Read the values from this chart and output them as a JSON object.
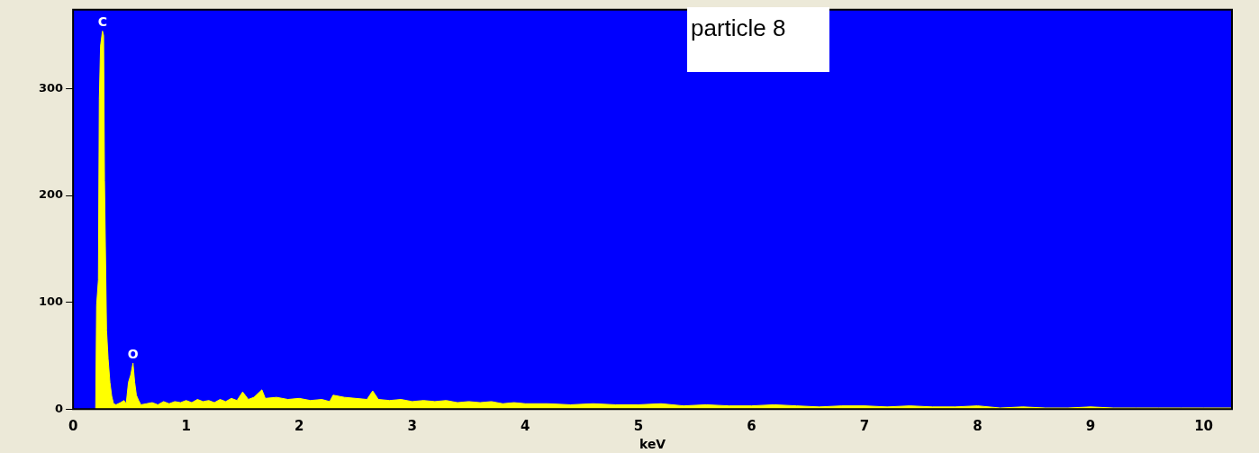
{
  "chart_data": {
    "type": "area",
    "xlabel": "keV",
    "xlim": [
      0,
      10.25
    ],
    "xticks": [
      0,
      1,
      2,
      3,
      4,
      5,
      6,
      7,
      8,
      9,
      10
    ],
    "ylim": [
      0,
      374
    ],
    "yticks": [
      0,
      100,
      200,
      300
    ],
    "grid": false,
    "legend": false,
    "annotations": [
      {
        "text": "C",
        "x": 0.26,
        "y": 354
      },
      {
        "text": "O",
        "x": 0.53,
        "y": 43
      },
      "particle 8"
    ],
    "x": [
      0.2,
      0.208,
      0.224,
      0.232,
      0.243,
      0.26,
      0.27,
      0.278,
      0.296,
      0.31,
      0.326,
      0.342,
      0.358,
      0.38,
      0.42,
      0.45,
      0.47,
      0.49,
      0.51,
      0.53,
      0.545,
      0.56,
      0.58,
      0.6,
      0.65,
      0.7,
      0.75,
      0.8,
      0.85,
      0.9,
      0.95,
      1.0,
      1.05,
      1.1,
      1.15,
      1.2,
      1.25,
      1.3,
      1.35,
      1.4,
      1.45,
      1.5,
      1.55,
      1.6,
      1.67,
      1.7,
      1.8,
      1.9,
      2.0,
      2.1,
      2.2,
      2.27,
      2.3,
      2.4,
      2.5,
      2.6,
      2.65,
      2.7,
      2.8,
      2.9,
      3.0,
      3.1,
      3.2,
      3.3,
      3.4,
      3.5,
      3.6,
      3.7,
      3.8,
      3.9,
      4.0,
      4.2,
      4.4,
      4.6,
      4.8,
      5.0,
      5.2,
      5.4,
      5.6,
      5.8,
      6.0,
      6.2,
      6.4,
      6.6,
      6.8,
      7.0,
      7.2,
      7.4,
      7.6,
      7.8,
      8.0,
      8.2,
      8.4,
      8.6,
      8.8,
      9.0,
      9.2,
      9.4,
      9.6,
      9.8,
      10.0,
      10.25
    ],
    "series": [
      {
        "color": "#ffff00",
        "values": [
          0,
          97,
          121,
          290,
          340,
          354,
          350,
          214,
          74,
          47,
          25,
          12,
          5,
          4,
          6,
          8,
          5,
          25,
          32,
          43,
          25,
          13,
          8,
          4,
          5,
          6,
          4,
          7,
          5,
          7,
          6,
          8,
          6,
          9,
          7,
          8,
          6,
          9,
          7,
          10,
          8,
          16,
          9,
          11,
          18,
          10,
          11,
          9,
          10,
          8,
          9,
          7,
          13,
          11,
          10,
          9,
          17,
          9,
          8,
          9,
          7,
          8,
          7,
          8,
          6,
          7,
          6,
          7,
          5,
          6,
          5,
          5,
          4,
          5,
          4,
          4,
          5,
          3,
          4,
          3,
          3,
          4,
          3,
          2,
          3,
          3,
          2,
          3,
          2,
          2,
          3,
          1,
          2,
          1,
          1,
          2,
          1,
          1,
          1,
          1,
          1,
          1
        ]
      }
    ]
  }
}
